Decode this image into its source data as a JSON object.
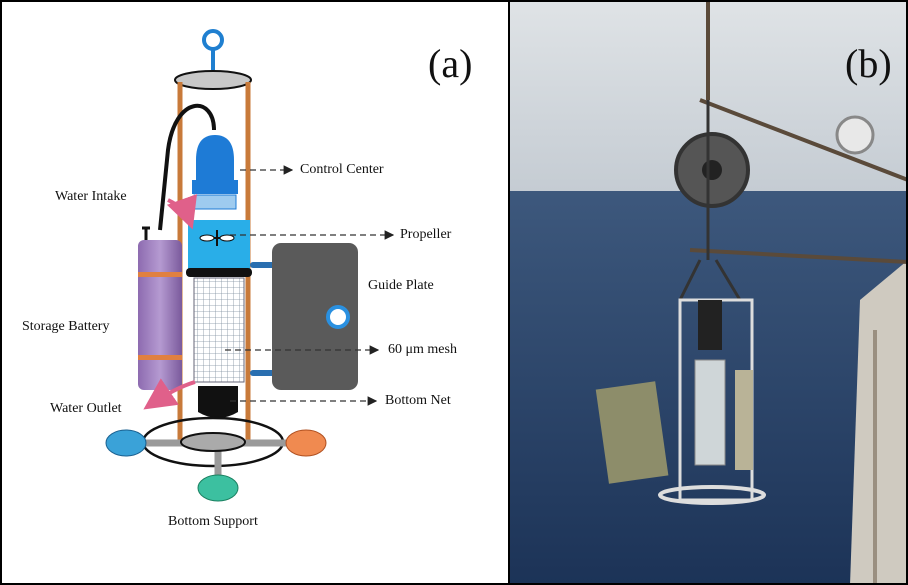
{
  "panels": [
    {
      "label": "(a)",
      "annotations": {
        "control_center": "Control Center",
        "water_intake": "Water Intake",
        "propeller": "Propeller",
        "guide_plate": "Guide Plate",
        "storage_battery": "Storage Battery",
        "mesh": "60 μm mesh",
        "water_outlet": "Water Outlet",
        "bottom_net": "Bottom Net",
        "bottom_support": "Bottom Support"
      }
    },
    {
      "label": "(b)"
    }
  ]
}
